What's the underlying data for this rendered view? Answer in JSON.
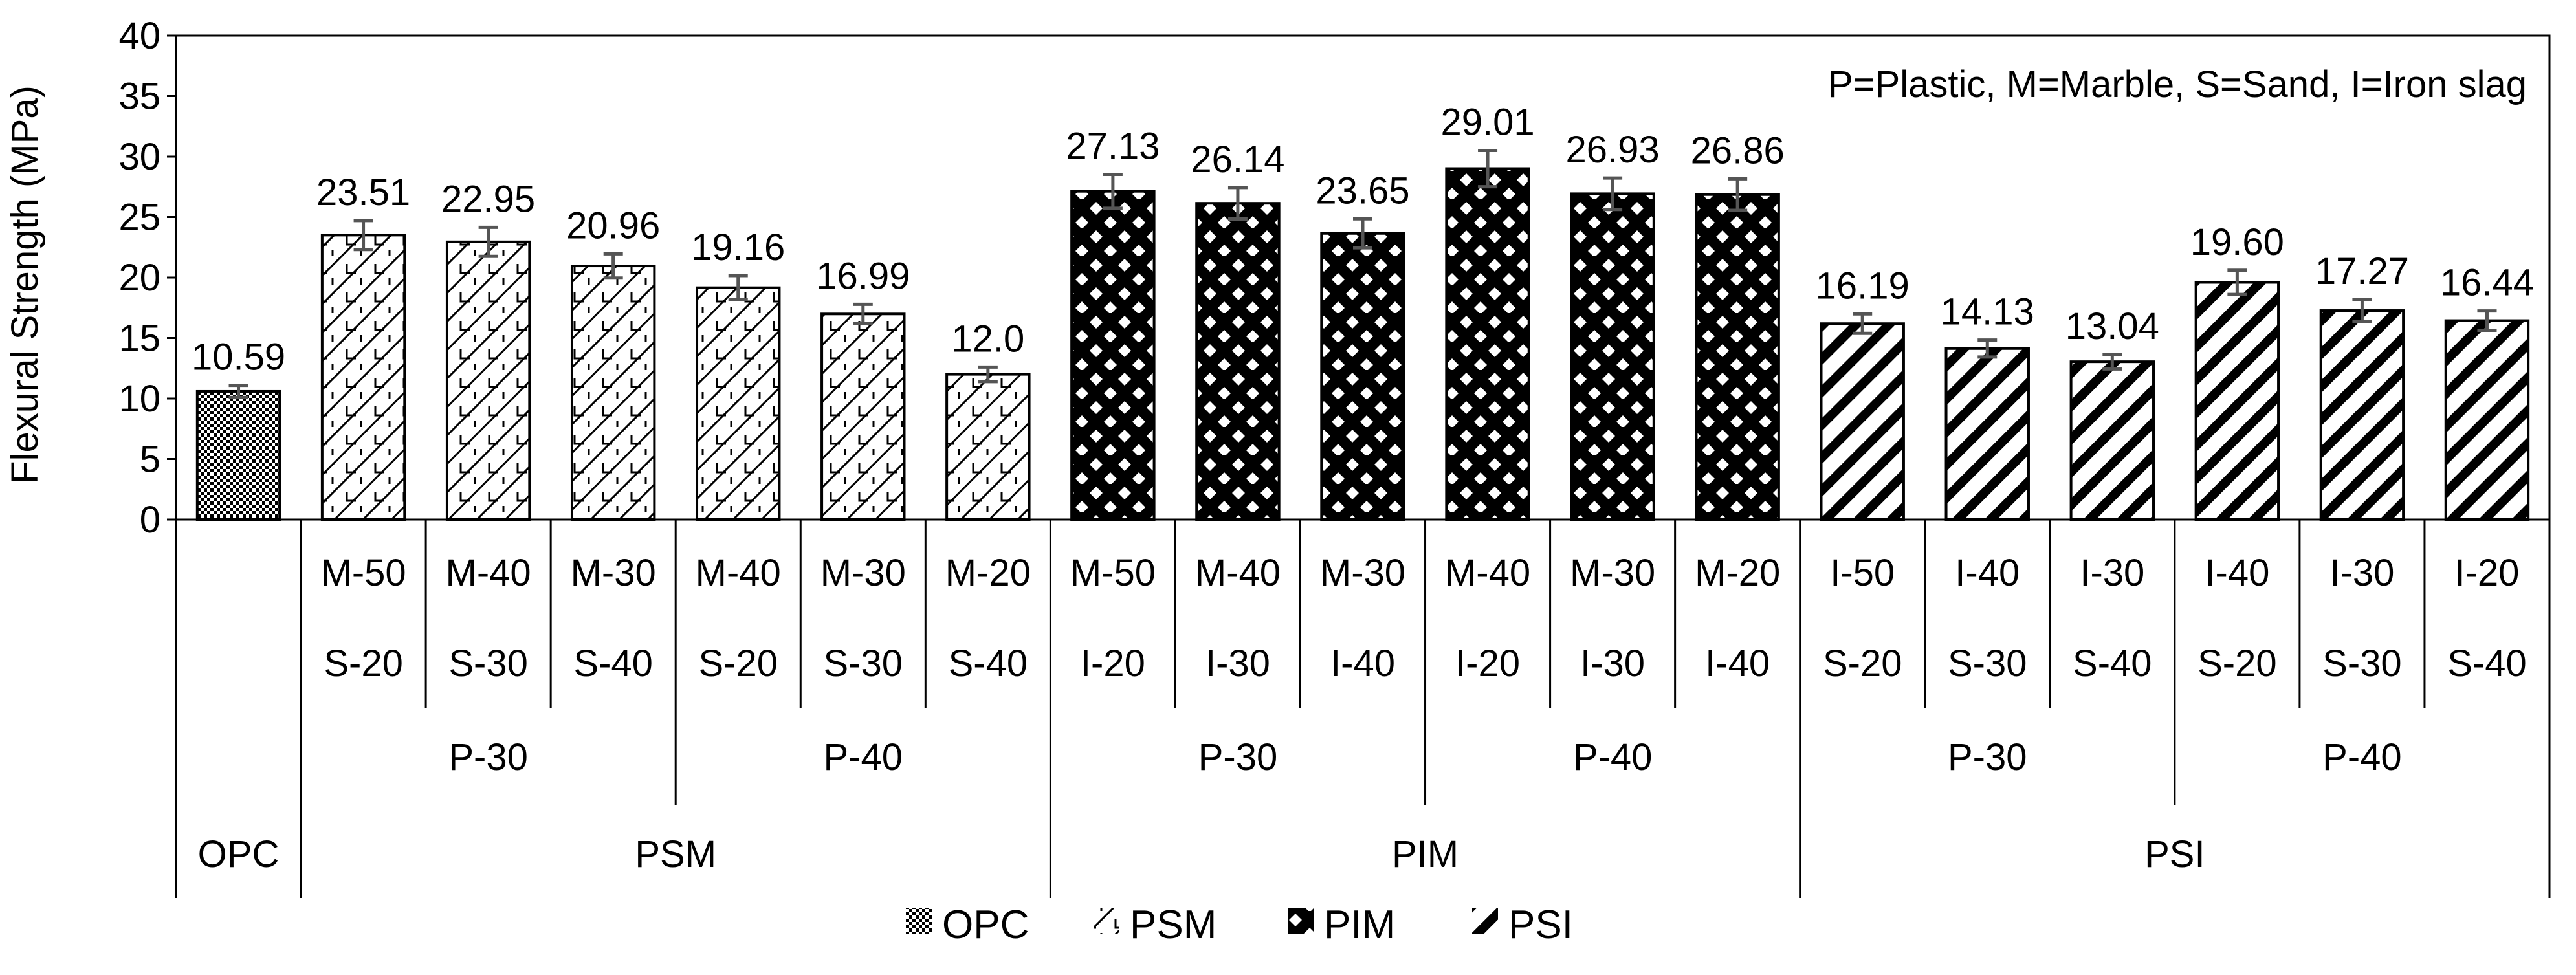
{
  "chart_data": {
    "type": "bar",
    "title": "",
    "ylabel": "Flexural Strength (MPa)",
    "xlabel": "",
    "ylim": [
      0,
      40
    ],
    "yticks": [
      0,
      5,
      10,
      15,
      20,
      25,
      30,
      35,
      40
    ],
    "annotation": "P=Plastic, M=Marble, S=Sand, I=Iron slag",
    "bars": [
      {
        "series": "OPC",
        "label1": "",
        "label2": "",
        "value": 10.59,
        "label": "10.59",
        "error": 0.5
      },
      {
        "series": "PSM",
        "label1": "M-50",
        "label2": "S-20",
        "value": 23.51,
        "label": "23.51",
        "error": 1.2
      },
      {
        "series": "PSM",
        "label1": "M-40",
        "label2": "S-30",
        "value": 22.95,
        "label": "22.95",
        "error": 1.2
      },
      {
        "series": "PSM",
        "label1": "M-30",
        "label2": "S-40",
        "value": 20.96,
        "label": "20.96",
        "error": 1.0
      },
      {
        "series": "PSM",
        "label1": "M-40",
        "label2": "S-20",
        "value": 19.16,
        "label": "19.16",
        "error": 1.0
      },
      {
        "series": "PSM",
        "label1": "M-30",
        "label2": "S-30",
        "value": 16.99,
        "label": "16.99",
        "error": 0.8
      },
      {
        "series": "PSM",
        "label1": "M-20",
        "label2": "S-40",
        "value": 12.0,
        "label": "12.0",
        "error": 0.6
      },
      {
        "series": "PIM",
        "label1": "M-50",
        "label2": "I-20",
        "value": 27.13,
        "label": "27.13",
        "error": 1.4
      },
      {
        "series": "PIM",
        "label1": "M-40",
        "label2": "I-30",
        "value": 26.14,
        "label": "26.14",
        "error": 1.3
      },
      {
        "series": "PIM",
        "label1": "M-30",
        "label2": "I-40",
        "value": 23.65,
        "label": "23.65",
        "error": 1.2
      },
      {
        "series": "PIM",
        "label1": "M-40",
        "label2": "I-20",
        "value": 29.01,
        "label": "29.01",
        "error": 1.5
      },
      {
        "series": "PIM",
        "label1": "M-30",
        "label2": "I-30",
        "value": 26.93,
        "label": "26.93",
        "error": 1.3
      },
      {
        "series": "PIM",
        "label1": "M-20",
        "label2": "I-40",
        "value": 26.86,
        "label": "26.86",
        "error": 1.3
      },
      {
        "series": "PSI",
        "label1": "I-50",
        "label2": "S-20",
        "value": 16.19,
        "label": "16.19",
        "error": 0.8
      },
      {
        "series": "PSI",
        "label1": "I-40",
        "label2": "S-30",
        "value": 14.13,
        "label": "14.13",
        "error": 0.7
      },
      {
        "series": "PSI",
        "label1": "I-30",
        "label2": "S-40",
        "value": 13.04,
        "label": "13.04",
        "error": 0.6
      },
      {
        "series": "PSI",
        "label1": "I-40",
        "label2": "S-20",
        "value": 19.6,
        "label": "19.60",
        "error": 1.0
      },
      {
        "series": "PSI",
        "label1": "I-30",
        "label2": "S-30",
        "value": 17.27,
        "label": "17.27",
        "error": 0.9
      },
      {
        "series": "PSI",
        "label1": "I-20",
        "label2": "S-40",
        "value": 16.44,
        "label": "16.44",
        "error": 0.8
      }
    ],
    "plastic_groups": [
      {
        "label": "P-30",
        "start": 1,
        "end": 3
      },
      {
        "label": "P-40",
        "start": 4,
        "end": 6
      },
      {
        "label": "P-30",
        "start": 7,
        "end": 9
      },
      {
        "label": "P-40",
        "start": 10,
        "end": 12
      },
      {
        "label": "P-30",
        "start": 13,
        "end": 15
      },
      {
        "label": "P-40",
        "start": 16,
        "end": 18
      }
    ],
    "mix_groups": [
      {
        "label": "OPC",
        "start": 0,
        "end": 0
      },
      {
        "label": "PSM",
        "start": 1,
        "end": 6
      },
      {
        "label": "PIM",
        "start": 7,
        "end": 12
      },
      {
        "label": "PSI",
        "start": 13,
        "end": 18
      }
    ],
    "legend": [
      {
        "series": "OPC",
        "label": "OPC"
      },
      {
        "series": "PSM",
        "label": "PSM"
      },
      {
        "series": "PIM",
        "label": "PIM"
      },
      {
        "series": "PSI",
        "label": "PSI"
      }
    ],
    "legend_position": "bottom"
  }
}
